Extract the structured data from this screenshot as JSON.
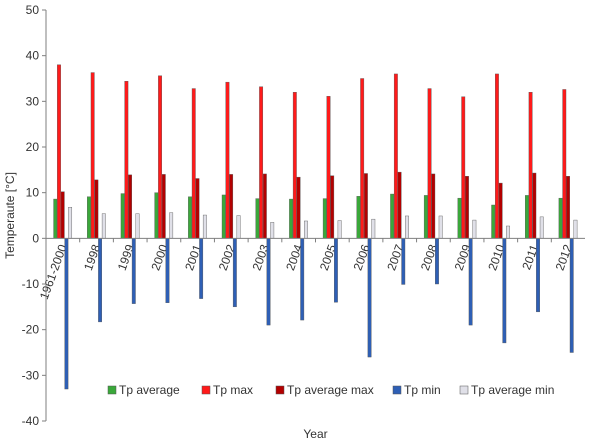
{
  "chart_data": {
    "type": "bar",
    "title": "",
    "xlabel": "Year",
    "ylabel": "Temperaute [°C]",
    "ylim": [
      -40,
      50
    ],
    "yticks": [
      -40,
      -30,
      -20,
      -10,
      0,
      10,
      20,
      30,
      40,
      50
    ],
    "grid": false,
    "legend_position": "bottom-center",
    "categories": [
      "1961-2000",
      "1998",
      "1999",
      "2000",
      "2001",
      "2002",
      "2003",
      "2004",
      "2005",
      "2006",
      "2007",
      "2008",
      "2009",
      "2010",
      "2011",
      "2012"
    ],
    "series": [
      {
        "name": "Tp average",
        "color": "#3aa83a",
        "values": [
          8.6,
          9.1,
          9.8,
          10.0,
          9.1,
          9.5,
          8.7,
          8.6,
          8.7,
          9.2,
          9.7,
          9.4,
          8.8,
          7.3,
          9.4,
          8.8
        ]
      },
      {
        "name": "Tp max",
        "color": "#ff1a1a",
        "values": [
          38.0,
          36.3,
          34.4,
          35.6,
          32.8,
          34.2,
          33.2,
          32.0,
          31.1,
          35.0,
          36.0,
          32.8,
          31.0,
          36.0,
          32.0,
          32.6
        ]
      },
      {
        "name": "Tp average max",
        "color": "#b30000",
        "values": [
          10.2,
          12.8,
          13.9,
          14.0,
          13.1,
          14.0,
          14.1,
          13.4,
          13.7,
          14.2,
          14.5,
          14.1,
          13.6,
          12.1,
          14.3,
          13.6
        ]
      },
      {
        "name": "Tp min",
        "color": "#2e5fb5",
        "values": [
          -33.0,
          -18.3,
          -14.3,
          -14.1,
          -13.2,
          -15.0,
          -19.0,
          -17.9,
          -14.0,
          -26.0,
          -10.1,
          -10.0,
          -19.0,
          -22.9,
          -16.1,
          -25.0
        ]
      },
      {
        "name": "Tp average min",
        "color": "#e0e0e8",
        "values": [
          6.8,
          5.4,
          5.4,
          5.6,
          5.1,
          5.0,
          3.5,
          3.8,
          3.9,
          4.2,
          4.9,
          4.9,
          4.0,
          2.7,
          4.7,
          4.0
        ]
      }
    ]
  }
}
